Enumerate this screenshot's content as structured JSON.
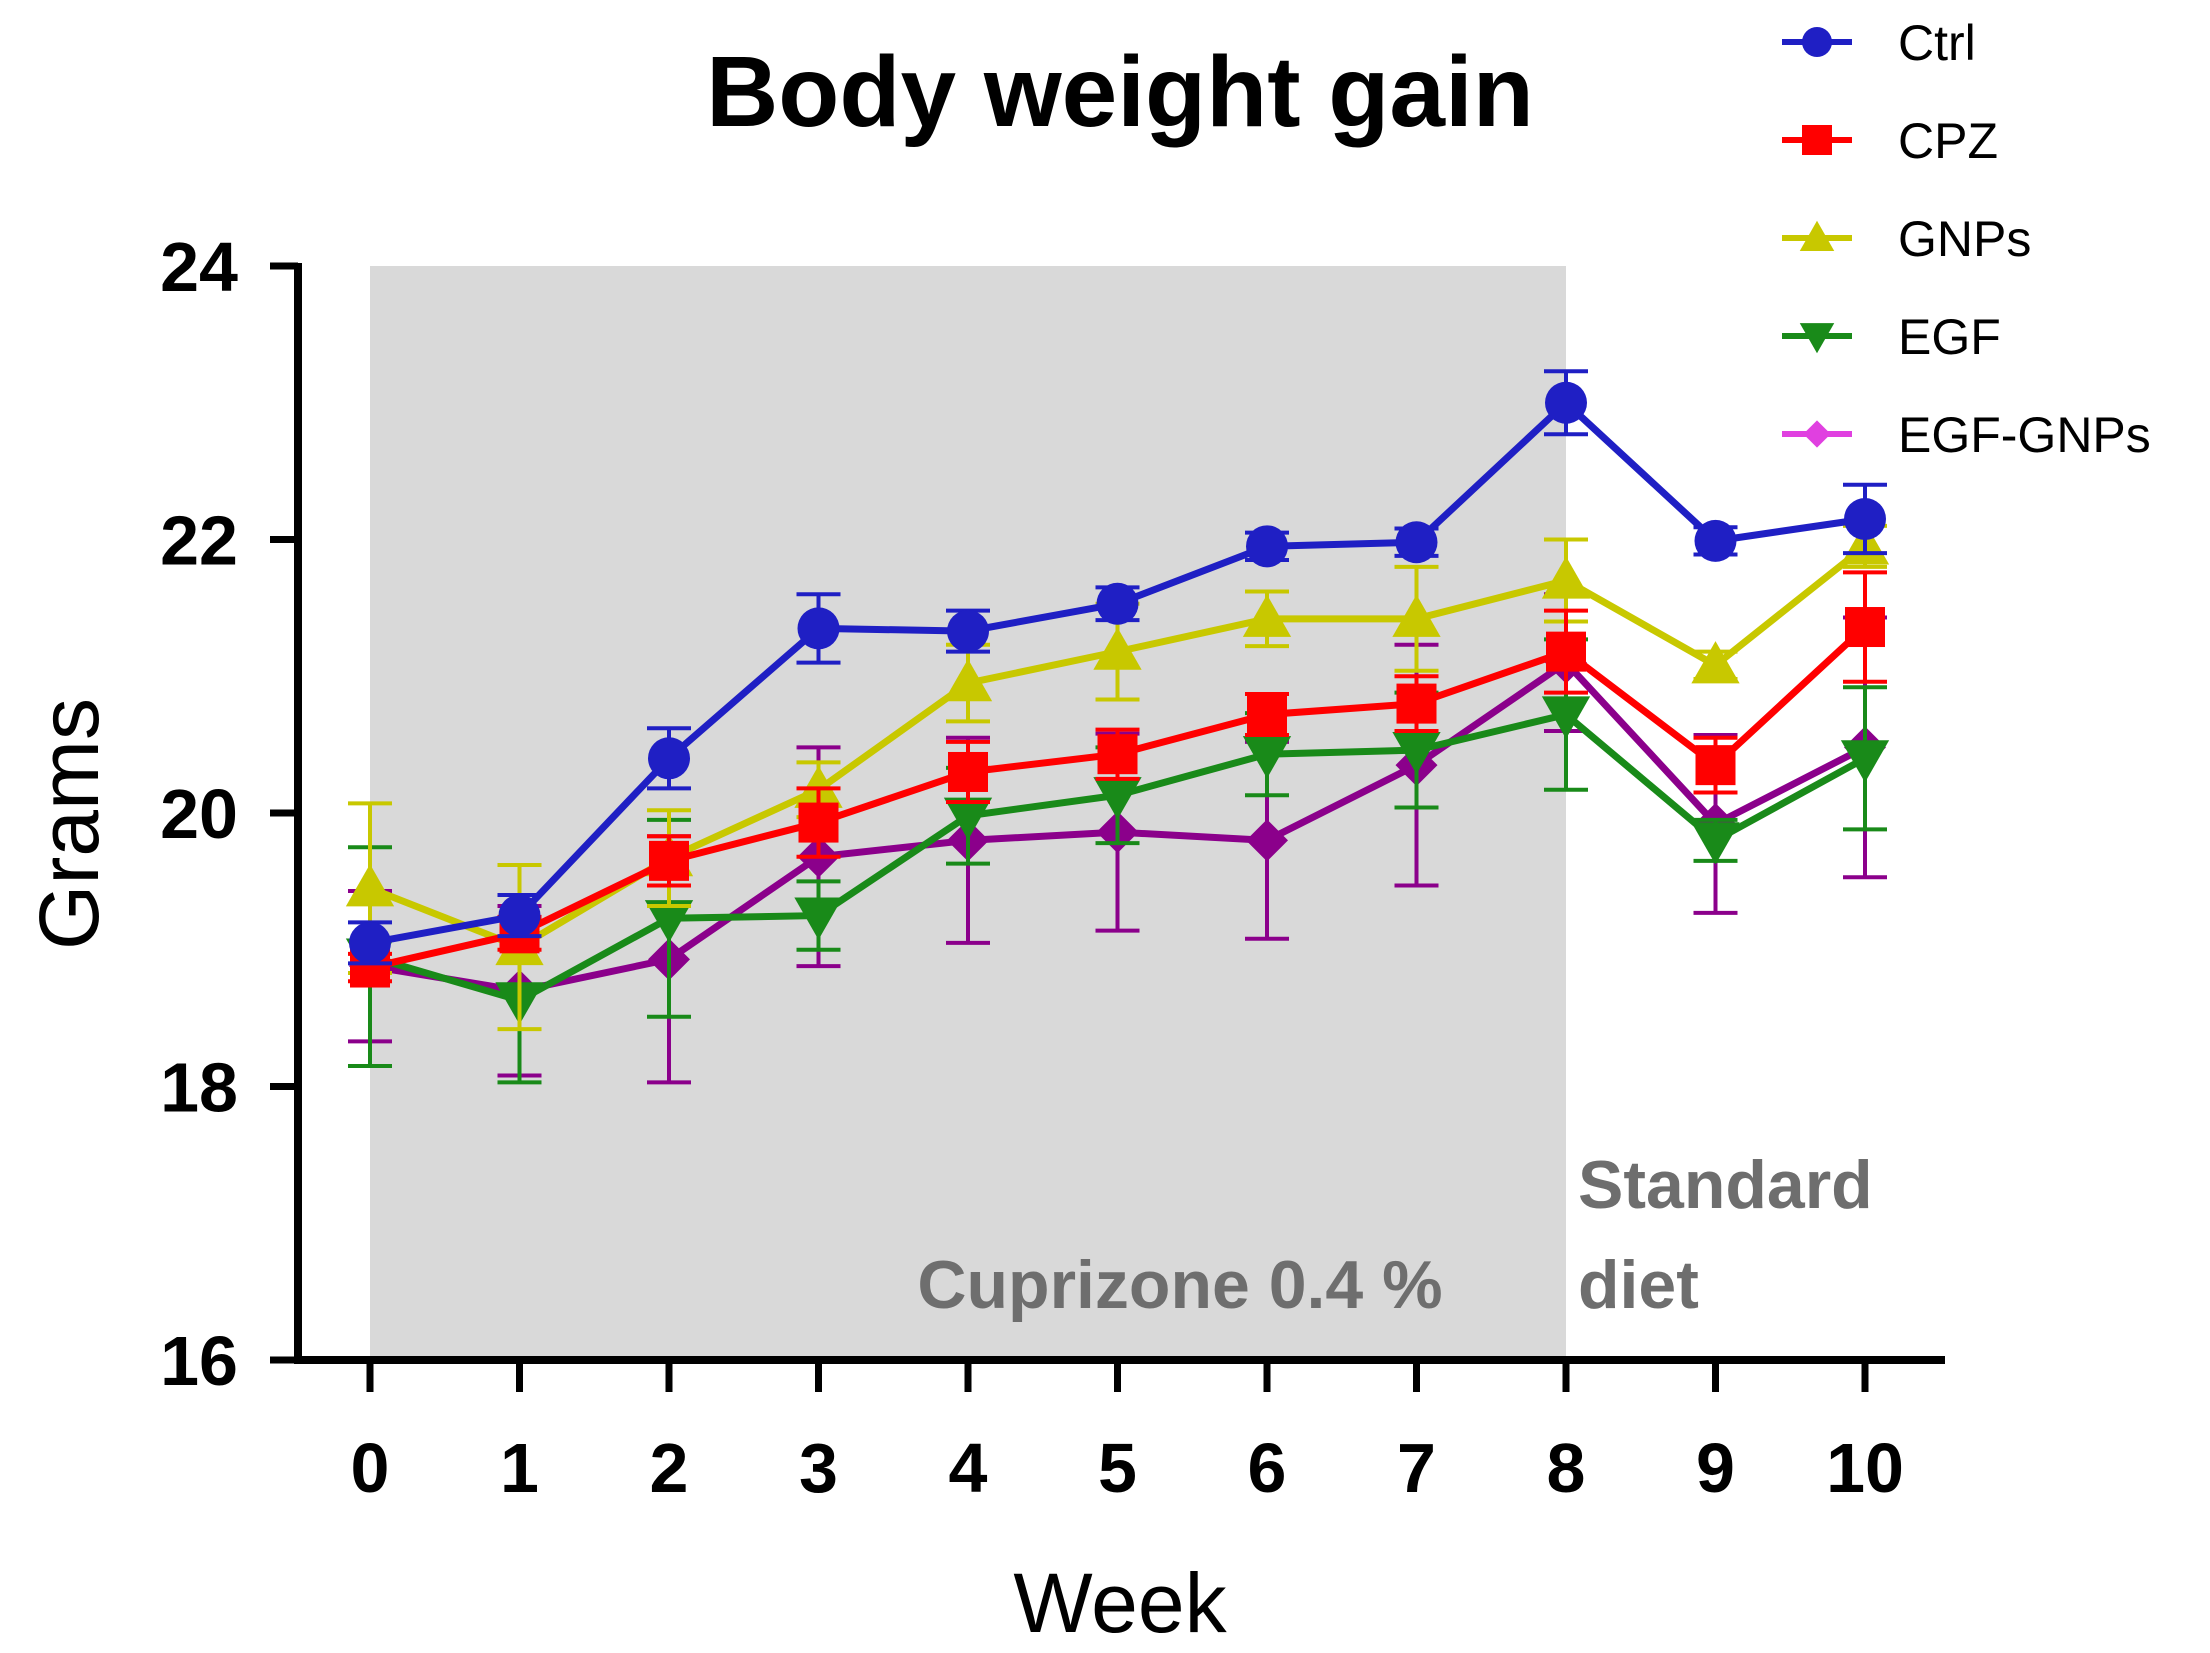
{
  "chart_data": {
    "type": "line",
    "title": "Body weight gain",
    "xlabel": "Week",
    "ylabel": "Grams",
    "x": [
      0,
      1,
      2,
      3,
      4,
      5,
      6,
      7,
      8,
      9,
      10
    ],
    "x_tick_labels": [
      "0",
      "1",
      "2",
      "3",
      "4",
      "5",
      "6",
      "7",
      "8",
      "9",
      "10"
    ],
    "xlim": [
      0,
      10
    ],
    "ylim": [
      16,
      24
    ],
    "y_ticks": [
      16,
      18,
      20,
      22,
      24
    ],
    "y_tick_labels": [
      "16",
      "18",
      "20",
      "22",
      "24"
    ],
    "grid": false,
    "legend_position": "top-right",
    "shaded_region": {
      "x_from": 0,
      "x_to": 8,
      "color": "#d9d9d9"
    },
    "annotations": [
      {
        "text": "Cuprizone 0.4 %"
      },
      {
        "text": "Standard"
      },
      {
        "text": "diet"
      }
    ],
    "series": [
      {
        "name": "Ctrl",
        "color": "#1f1fc4",
        "marker": "circle",
        "values": [
          19.05,
          19.25,
          20.4,
          21.35,
          21.33,
          21.53,
          21.95,
          21.98,
          23.0,
          21.99,
          22.15
        ],
        "errors": [
          0.15,
          0.15,
          0.22,
          0.25,
          0.15,
          0.12,
          0.1,
          0.1,
          0.23,
          0.1,
          0.25
        ]
      },
      {
        "name": "CPZ",
        "color": "#ff0000",
        "marker": "square",
        "values": [
          18.87,
          19.12,
          19.65,
          19.93,
          20.3,
          20.43,
          20.72,
          20.8,
          21.18,
          20.35,
          21.36
        ],
        "errors": [
          0.1,
          0.12,
          0.18,
          0.25,
          0.22,
          0.18,
          0.15,
          0.2,
          0.3,
          0.2,
          0.4
        ]
      },
      {
        "name": "GNPs",
        "color": "#c8c800",
        "marker": "triangle-up",
        "values": [
          19.45,
          19.02,
          19.67,
          20.17,
          20.95,
          21.18,
          21.42,
          21.42,
          21.7,
          21.08,
          21.95
        ],
        "errors": [
          0.62,
          0.6,
          0.35,
          0.2,
          0.28,
          0.35,
          0.2,
          0.38,
          0.3,
          0.1,
          0.15
        ]
      },
      {
        "name": "EGF",
        "color": "#198a19",
        "marker": "triangle-down",
        "values": [
          18.95,
          18.63,
          19.23,
          19.25,
          19.98,
          20.13,
          20.43,
          20.46,
          20.72,
          19.8,
          20.4
        ],
        "errors": [
          0.8,
          0.6,
          0.72,
          0.25,
          0.35,
          0.35,
          0.3,
          0.42,
          0.55,
          0.15,
          0.52
        ]
      },
      {
        "name": "EGF-GNPs",
        "color": "#8b008b",
        "legend_color": "#e040e0",
        "marker": "diamond",
        "values": [
          18.88,
          18.7,
          18.93,
          19.68,
          19.8,
          19.86,
          19.8,
          20.35,
          21.1,
          19.92,
          20.48
        ],
        "errors": [
          0.55,
          0.62,
          0.9,
          0.8,
          0.75,
          0.72,
          0.72,
          0.88,
          0.5,
          0.65,
          0.95
        ]
      }
    ]
  }
}
